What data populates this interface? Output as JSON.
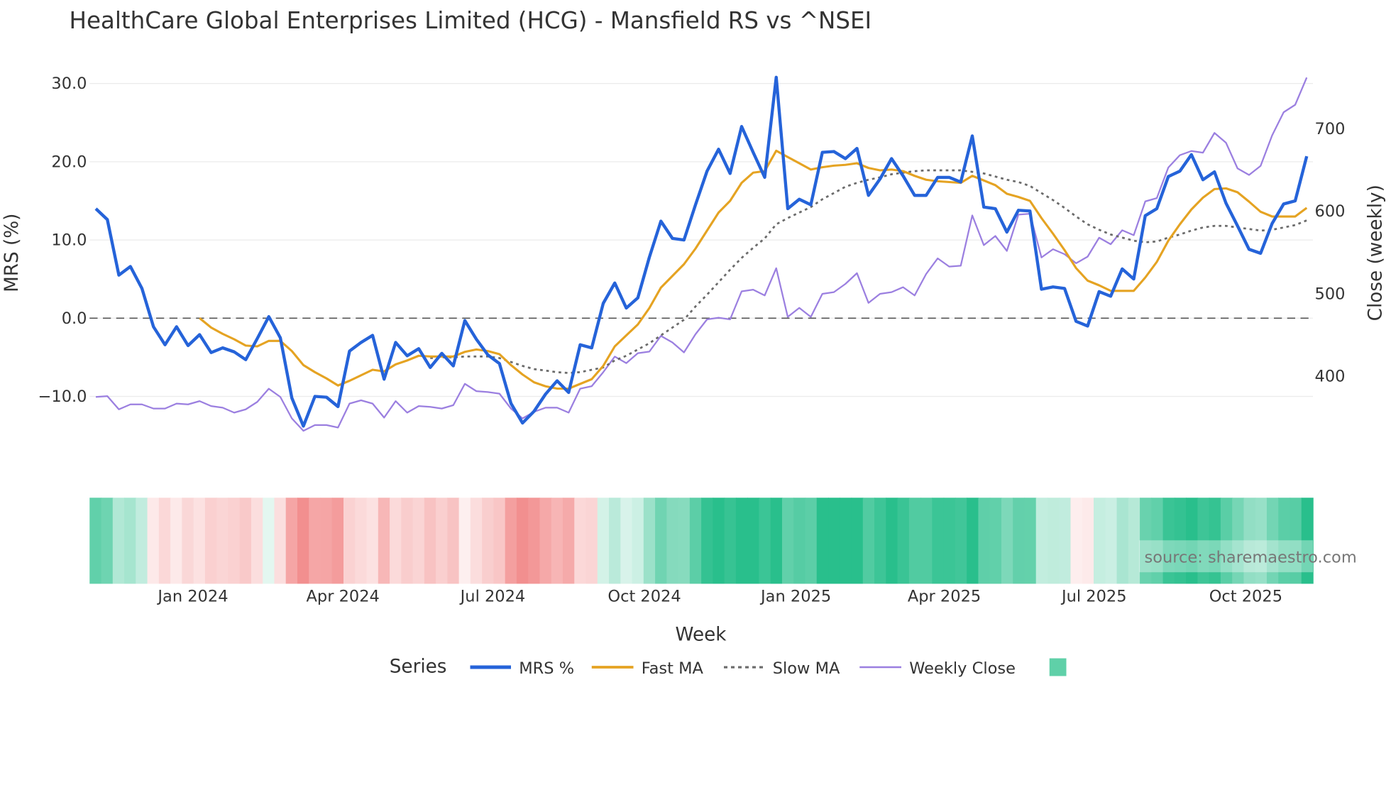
{
  "chart_data": {
    "type": "line",
    "title": "HealthCare Global Enterprises Limited (HCG) - Mansfield RS vs ^NSEI",
    "xlabel": "Week",
    "ylabel": "MRS (%)",
    "y2label": "Close (weekly)",
    "start_date": "2023-11-03",
    "interval_days": 7,
    "ylim": [
      -18.3,
      31.6
    ],
    "y2lim": [
      297,
      770
    ],
    "y_ticks": [
      {
        "v": -10,
        "label": "−10.0"
      },
      {
        "v": 0,
        "label": "0.0"
      },
      {
        "v": 10,
        "label": "10.0"
      },
      {
        "v": 20,
        "label": "20.0"
      },
      {
        "v": 30,
        "label": "30.0"
      }
    ],
    "y2_ticks": [
      {
        "v": 400,
        "label": "400"
      },
      {
        "v": 500,
        "label": "500"
      },
      {
        "v": 600,
        "label": "600"
      },
      {
        "v": 700,
        "label": "700"
      }
    ],
    "x_ticks": [
      {
        "date": "2024-01-01",
        "label": "Jan 2024"
      },
      {
        "date": "2024-04-01",
        "label": "Apr 2024"
      },
      {
        "date": "2024-07-01",
        "label": "Jul 2024"
      },
      {
        "date": "2024-10-01",
        "label": "Oct 2024"
      },
      {
        "date": "2025-01-01",
        "label": "Jan 2025"
      },
      {
        "date": "2025-04-01",
        "label": "Apr 2025"
      },
      {
        "date": "2025-07-01",
        "label": "Jul 2025"
      },
      {
        "date": "2025-10-01",
        "label": "Oct 2025"
      }
    ],
    "reference_line": 0,
    "grid": true,
    "legend_title": "Series",
    "legend_placement": "bottom-center",
    "series": [
      {
        "name": "MRS %",
        "axis": "left",
        "color": "#2563d9",
        "offset": 0,
        "values": [
          14,
          12.6,
          5.5,
          6.6,
          3.8,
          -1.1,
          -3.4,
          -1.1,
          -3.5,
          -2.1,
          -4.4,
          -3.8,
          -4.3,
          -5.3,
          -2.6,
          0.2,
          -2.5,
          -10.2,
          -13.8,
          -10,
          -10.1,
          -11.3,
          -4.2,
          -3.1,
          -2.2,
          -7.8,
          -3.1,
          -4.8,
          -3.9,
          -6.3,
          -4.5,
          -6.1,
          -0.3,
          -2.7,
          -4.7,
          -5.8,
          -10.9,
          -13.4,
          -11.9,
          -9.7,
          -8,
          -9.5,
          -3.4,
          -3.8,
          1.9,
          4.5,
          1.3,
          2.6,
          7.8,
          12.4,
          10.2,
          10,
          14.5,
          18.8,
          21.6,
          18.5,
          24.5,
          21.2,
          18,
          30.8,
          14,
          15.2,
          14.5,
          21.2,
          21.3,
          20.4,
          21.7,
          15.7,
          17.8,
          20.4,
          18.2,
          15.7,
          15.7,
          18,
          18,
          17.4,
          23.3,
          14.2,
          14,
          11,
          13.8,
          13.7,
          3.7,
          4,
          3.8,
          -0.4,
          -1,
          3.4,
          2.8,
          6.3,
          5,
          13.1,
          14,
          18.1,
          18.8,
          20.9,
          17.7,
          18.7,
          14.7,
          11.8,
          8.8,
          8.3,
          12.1,
          14.6,
          15,
          20.7
        ]
      },
      {
        "name": "Fast MA",
        "axis": "left",
        "color": "#e5a322",
        "offset": 9,
        "values": [
          0,
          -1.2,
          -2,
          -2.7,
          -3.5,
          -3.6,
          -2.9,
          -2.9,
          -4.2,
          -6,
          -6.9,
          -7.7,
          -8.6,
          -8,
          -7.3,
          -6.6,
          -6.8,
          -5.9,
          -5.4,
          -4.8,
          -4.9,
          -4.9,
          -4.9,
          -4.3,
          -4,
          -4.2,
          -4.6,
          -6,
          -7.2,
          -8.2,
          -8.7,
          -9,
          -9,
          -8.4,
          -7.8,
          -6.1,
          -3.6,
          -2.2,
          -0.8,
          1.3,
          3.9,
          5.4,
          6.9,
          8.9,
          11.2,
          13.5,
          15,
          17.3,
          18.6,
          18.8,
          21.4,
          20.6,
          19.8,
          19,
          19.3,
          19.5,
          19.6,
          19.8,
          19.2,
          18.9,
          19,
          18.8,
          18.2,
          17.7,
          17.5,
          17.4,
          17.3,
          18.2,
          17.6,
          17,
          15.9,
          15.5,
          15,
          12.8,
          10.8,
          8.7,
          6.4,
          4.8,
          4.2,
          3.5,
          3.5,
          3.5,
          5.2,
          7.2,
          9.9,
          12,
          13.9,
          15.4,
          16.5,
          16.6,
          16.1,
          14.9,
          13.6,
          13,
          13,
          13,
          14.1
        ]
      },
      {
        "name": "Slow MA",
        "axis": "left",
        "color": "#6b6b6b",
        "dash": true,
        "offset": 29,
        "values": [
          -5.1,
          -5,
          -5,
          -4.9,
          -4.9,
          -4.9,
          -5.1,
          -5.6,
          -6.1,
          -6.5,
          -6.7,
          -6.9,
          -7,
          -6.9,
          -6.6,
          -6.3,
          -5.4,
          -4.8,
          -4,
          -3.2,
          -2.2,
          -1.2,
          -0.2,
          1.5,
          3,
          4.6,
          6.2,
          7.7,
          9,
          10.2,
          12,
          12.8,
          13.5,
          14.2,
          15.2,
          16,
          16.8,
          17.3,
          17.7,
          18,
          18.4,
          18.6,
          18.8,
          18.9,
          18.9,
          18.9,
          18.9,
          18.7,
          18.5,
          18.1,
          17.7,
          17.4,
          16.9,
          16,
          15.1,
          14.1,
          13,
          12,
          11.3,
          10.7,
          10.3,
          9.9,
          9.7,
          9.8,
          10.3,
          10.7,
          11.2,
          11.6,
          11.8,
          11.8,
          11.6,
          11.4,
          11.2,
          11.3,
          11.6,
          11.9,
          12.5
        ]
      },
      {
        "name": "Weekly Close",
        "axis": "right",
        "color": "#9b7fe0",
        "offset": 0,
        "values": [
          375,
          376,
          360,
          366,
          366,
          361,
          361,
          367,
          366,
          370,
          364,
          362,
          356,
          360,
          369,
          385,
          375,
          349,
          334,
          341,
          341,
          338,
          367,
          371,
          367,
          350,
          370,
          356,
          364,
          363,
          361,
          365,
          391,
          382,
          381,
          379,
          361,
          349,
          357,
          362,
          362,
          356,
          385,
          388,
          405,
          424,
          416,
          428,
          430,
          449,
          441,
          429,
          451,
          469,
          471,
          469,
          503,
          505,
          498,
          531,
          472,
          483,
          472,
          500,
          502,
          512,
          525,
          489,
          500,
          502,
          508,
          498,
          524,
          543,
          533,
          534,
          595,
          559,
          570,
          552,
          596,
          597,
          544,
          554,
          548,
          537,
          545,
          568,
          560,
          577,
          571,
          612,
          616,
          653,
          668,
          673,
          671,
          695,
          683,
          652,
          644,
          655,
          692,
          720,
          729,
          762
        ]
      }
    ],
    "heatmap": {
      "source_series": "MRS %",
      "positive_color": "#22bd88",
      "negative_color": "#f28c8c",
      "legend_color": "#5fd0a8"
    }
  },
  "watermark": "source: sharemaestro.com"
}
